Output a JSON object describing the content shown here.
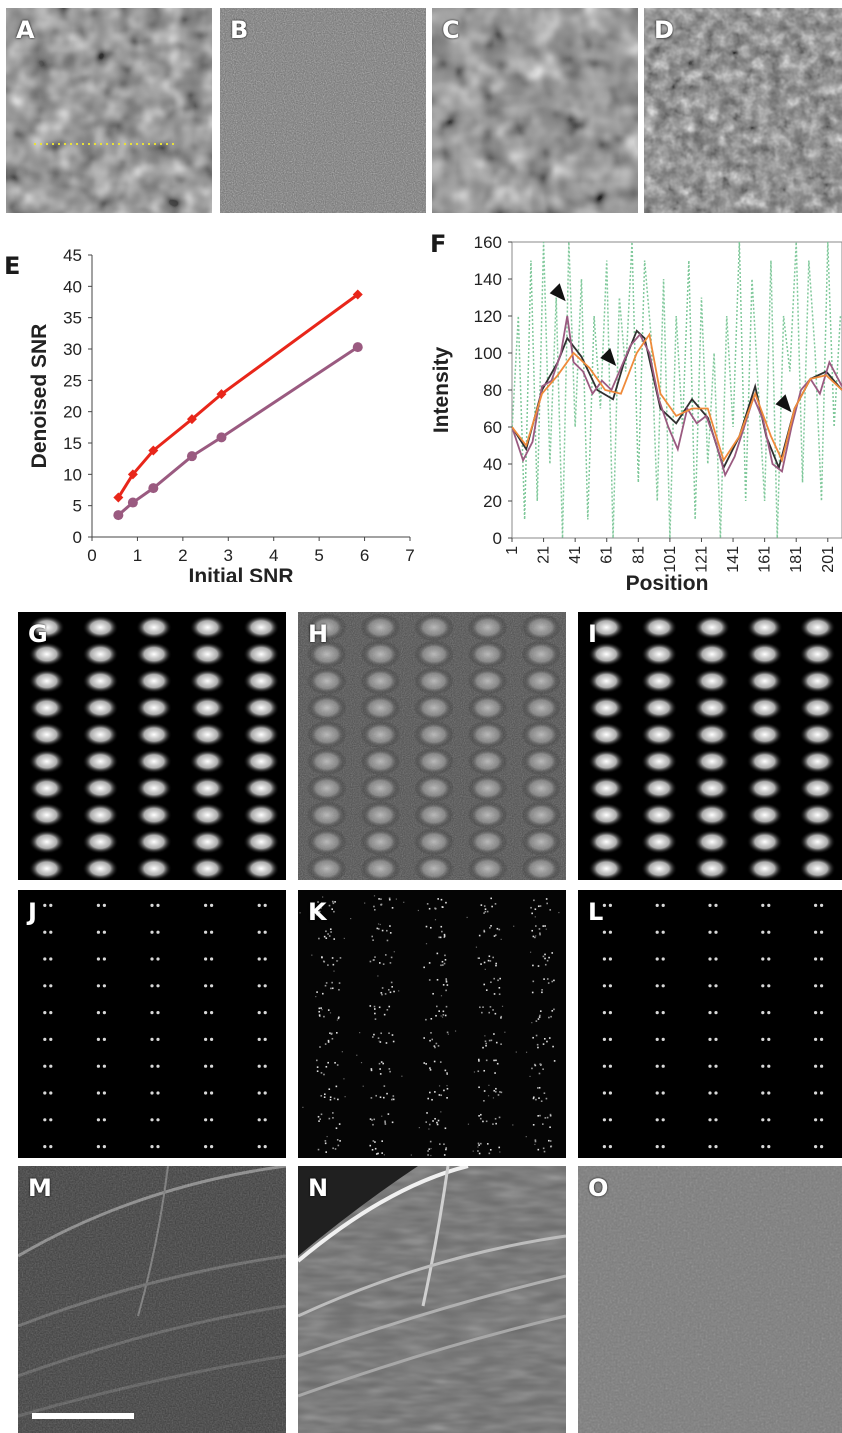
{
  "panels": {
    "A": "A",
    "B": "B",
    "C": "C",
    "D": "D",
    "E": "E",
    "F": "F",
    "G": "G",
    "H": "H",
    "I": "I",
    "J": "J",
    "K": "K",
    "L": "L",
    "M": "M",
    "N": "N",
    "O": "O"
  },
  "colors": {
    "red": "#e8261a",
    "purple": "#9a5a80",
    "black": "#303030",
    "orange": "#ef8a3a",
    "green": "#7fc89a",
    "yellow": "#e8e03a"
  },
  "chart_data": [
    {
      "type": "line",
      "panel": "E",
      "xlabel": "Initial SNR",
      "ylabel": "Denoised SNR",
      "xlim": [
        0,
        7
      ],
      "ylim": [
        0,
        45
      ],
      "xticks": [
        "0",
        "1",
        "2",
        "3",
        "4",
        "5",
        "6",
        "7"
      ],
      "yticks": [
        "0",
        "5",
        "10",
        "15",
        "20",
        "25",
        "30",
        "35",
        "40",
        "45"
      ],
      "grid": false,
      "series": [
        {
          "color": "#e8261a",
          "marker": "diamond",
          "x": [
            0.58,
            0.9,
            1.35,
            2.2,
            2.85,
            5.85
          ],
          "y": [
            6.3,
            10.0,
            13.8,
            18.8,
            22.8,
            38.7
          ]
        },
        {
          "color": "#9a5a80",
          "marker": "circle",
          "x": [
            0.58,
            0.9,
            1.35,
            2.2,
            2.85,
            5.85
          ],
          "y": [
            3.5,
            5.5,
            7.8,
            12.9,
            15.9,
            30.3
          ]
        }
      ]
    },
    {
      "type": "line",
      "panel": "F",
      "xlabel": "Position",
      "ylabel": "Intensity",
      "xlim": [
        1,
        210
      ],
      "ylim": [
        0,
        160
      ],
      "xticks": [
        "1",
        "21",
        "41",
        "61",
        "81",
        "101",
        "121",
        "141",
        "161",
        "181",
        "201"
      ],
      "yticks": [
        "0",
        "20",
        "40",
        "60",
        "80",
        "100",
        "120",
        "140",
        "160"
      ],
      "grid": false,
      "arrowheads_at_x": [
        35,
        67,
        178
      ],
      "series": [
        {
          "color": "#303030",
          "x": [
            1,
            10,
            20,
            30,
            36,
            45,
            55,
            65,
            72,
            80,
            85,
            95,
            105,
            115,
            125,
            135,
            145,
            155,
            162,
            170,
            180,
            190,
            200,
            210
          ],
          "y": [
            60,
            48,
            80,
            95,
            108,
            98,
            80,
            75,
            95,
            112,
            108,
            70,
            62,
            75,
            65,
            38,
            55,
            82,
            55,
            38,
            70,
            86,
            90,
            80
          ]
        },
        {
          "color": "#9a5a80",
          "x": [
            1,
            8,
            14,
            20,
            26,
            32,
            36,
            40,
            46,
            52,
            58,
            64,
            70,
            76,
            82,
            88,
            94,
            100,
            106,
            112,
            118,
            124,
            130,
            136,
            142,
            148,
            154,
            160,
            166,
            172,
            178,
            184,
            190,
            196,
            202,
            210
          ],
          "y": [
            60,
            42,
            52,
            82,
            85,
            100,
            120,
            95,
            90,
            78,
            85,
            80,
            92,
            104,
            110,
            100,
            75,
            60,
            48,
            70,
            62,
            66,
            52,
            34,
            44,
            60,
            76,
            64,
            40,
            36,
            60,
            80,
            86,
            78,
            95,
            82
          ]
        },
        {
          "color": "#ef8a3a",
          "x": [
            1,
            10,
            20,
            30,
            40,
            50,
            60,
            70,
            80,
            88,
            95,
            105,
            115,
            125,
            135,
            145,
            155,
            165,
            172,
            180,
            190,
            200,
            210
          ],
          "y": [
            60,
            50,
            78,
            88,
            100,
            92,
            80,
            78,
            100,
            110,
            78,
            66,
            70,
            70,
            42,
            55,
            78,
            55,
            42,
            70,
            86,
            88,
            80
          ]
        },
        {
          "color": "#7fc89a",
          "style": "dotted",
          "noisy": true,
          "x": [
            1,
            5,
            9,
            13,
            17,
            21,
            25,
            29,
            33,
            37,
            41,
            45,
            49,
            53,
            57,
            61,
            65,
            69,
            73,
            77,
            81,
            85,
            89,
            93,
            97,
            101,
            105,
            109,
            113,
            117,
            121,
            125,
            129,
            133,
            137,
            141,
            145,
            149,
            153,
            157,
            161,
            165,
            169,
            173,
            177,
            181,
            185,
            189,
            193,
            197,
            201,
            205,
            209
          ],
          "y": [
            58,
            120,
            10,
            150,
            20,
            160,
            40,
            130,
            0,
            160,
            60,
            140,
            10,
            120,
            70,
            150,
            0,
            130,
            90,
            160,
            30,
            150,
            110,
            20,
            140,
            0,
            120,
            60,
            150,
            10,
            130,
            40,
            100,
            0,
            120,
            60,
            160,
            20,
            140,
            80,
            20,
            150,
            0,
            120,
            90,
            160,
            30,
            150,
            100,
            20,
            160,
            60,
            120
          ]
        }
      ]
    }
  ]
}
